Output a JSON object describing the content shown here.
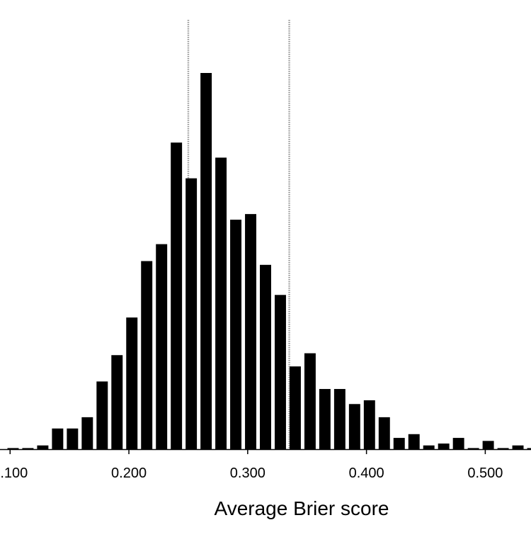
{
  "chart_data": {
    "type": "bar",
    "title": "",
    "xlabel": "Average Brier score",
    "ylabel": "",
    "xlim": [
      0.0915,
      0.5385
    ],
    "ylim": [
      0,
      100
    ],
    "bin_width": 0.0125,
    "bin_centers": [
      0.1025,
      0.115,
      0.1275,
      0.14,
      0.1525,
      0.165,
      0.1775,
      0.19,
      0.2025,
      0.215,
      0.2275,
      0.24,
      0.2525,
      0.265,
      0.2775,
      0.29,
      0.3025,
      0.315,
      0.3275,
      0.34,
      0.3525,
      0.365,
      0.3775,
      0.39,
      0.4025,
      0.415,
      0.4275,
      0.44,
      0.4525,
      0.465,
      0.4775,
      0.49,
      0.5025,
      0.515,
      0.5275,
      0.54
    ],
    "values": [
      0.3,
      0.3,
      1,
      5.5,
      5.5,
      8.5,
      18,
      25,
      35,
      50,
      54.5,
      81.5,
      72,
      100,
      77.5,
      61,
      62.5,
      49,
      41,
      22,
      25.5,
      16,
      16,
      12,
      13,
      8.5,
      3,
      4,
      1,
      1.5,
      3,
      0.3,
      2.2,
      0.3,
      1,
      0.3
    ],
    "xticks": [
      0.1,
      0.2,
      0.3,
      0.4,
      0.5
    ],
    "xtick_labels": [
      "0.100",
      "0.200",
      "0.300",
      "0.400",
      "0.500"
    ],
    "reference_lines": [
      0.25,
      0.335
    ],
    "colors": {
      "bar": "#000000",
      "reference_line": "#999999",
      "axis": "#000000"
    }
  }
}
